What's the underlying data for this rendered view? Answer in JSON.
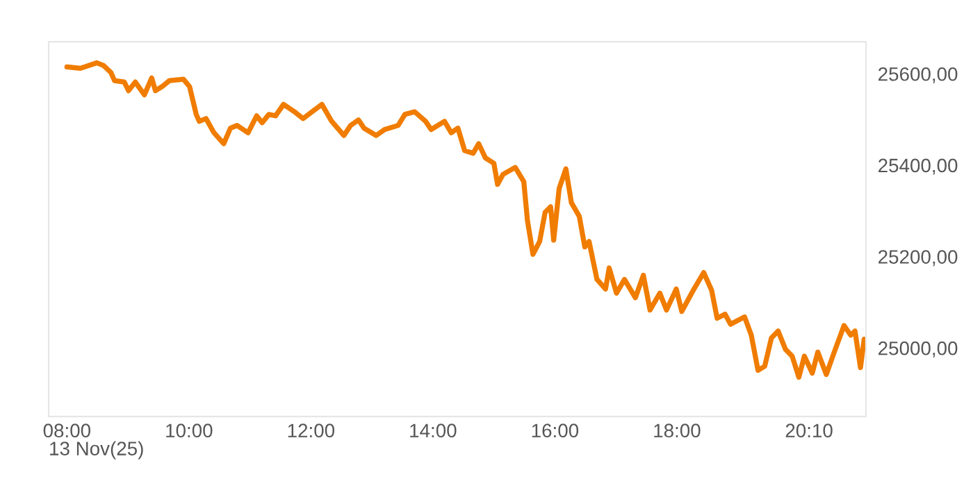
{
  "chart_data": {
    "type": "line",
    "color": "#f07c00",
    "line_style": "solid",
    "marker": "none",
    "grid": false,
    "legend": false,
    "x": [
      8.0,
      8.22,
      8.49,
      8.6,
      8.72,
      8.78,
      8.94,
      9.01,
      9.12,
      9.27,
      9.39,
      9.45,
      9.56,
      9.68,
      9.91,
      10.01,
      10.12,
      10.17,
      10.28,
      10.41,
      10.57,
      10.68,
      10.79,
      10.97,
      11.11,
      11.2,
      11.31,
      11.42,
      11.55,
      11.73,
      11.87,
      12.02,
      12.18,
      12.34,
      12.54,
      12.65,
      12.78,
      12.87,
      13.07,
      13.21,
      13.43,
      13.54,
      13.7,
      13.88,
      13.97,
      14.19,
      14.3,
      14.41,
      14.52,
      14.66,
      14.75,
      14.86,
      15.0,
      15.06,
      15.15,
      15.35,
      15.49,
      15.55,
      15.64,
      15.75,
      15.84,
      15.93,
      15.98,
      16.07,
      16.18,
      16.27,
      16.4,
      16.49,
      16.56,
      16.69,
      16.83,
      16.89,
      17.01,
      17.14,
      17.32,
      17.45,
      17.56,
      17.72,
      17.83,
      17.99,
      18.08,
      18.28,
      18.44,
      18.57,
      18.66,
      18.79,
      18.88,
      19.11,
      19.22,
      19.33,
      19.44,
      19.55,
      19.66,
      19.78,
      19.89,
      20.0,
      20.09,
      20.22,
      20.31,
      20.45,
      20.58,
      20.74,
      20.85,
      20.92,
      21.01,
      21.07
    ],
    "values": [
      25615,
      25612,
      25624,
      25618,
      25603,
      25585,
      25582,
      25563,
      25582,
      25554,
      25591,
      25563,
      25572,
      25585,
      25588,
      25572,
      25511,
      25496,
      25502,
      25471,
      25447,
      25481,
      25487,
      25471,
      25508,
      25493,
      25511,
      25508,
      25533,
      25517,
      25502,
      25517,
      25533,
      25496,
      25465,
      25487,
      25499,
      25481,
      25465,
      25478,
      25487,
      25511,
      25517,
      25496,
      25478,
      25496,
      25471,
      25481,
      25432,
      25426,
      25447,
      25416,
      25404,
      25358,
      25380,
      25395,
      25364,
      25279,
      25205,
      25233,
      25297,
      25309,
      25236,
      25349,
      25392,
      25318,
      25288,
      25221,
      25233,
      25150,
      25129,
      25175,
      25120,
      25150,
      25110,
      25159,
      25083,
      25120,
      25083,
      25129,
      25080,
      25129,
      25165,
      25126,
      25065,
      25074,
      25052,
      25068,
      25028,
      24951,
      24960,
      25022,
      25037,
      24997,
      24982,
      24936,
      24982,
      24945,
      24991,
      24942,
      24991,
      25049,
      25028,
      25037,
      24957,
      25019
    ],
    "xlabel": "13 Nov(25)",
    "xlim": [
      7.7,
      21.1
    ],
    "ylim": [
      24850,
      25670
    ],
    "xticks": [
      {
        "value": 8,
        "label": "08:00"
      },
      {
        "value": 10,
        "label": "10:00"
      },
      {
        "value": 12,
        "label": "12:00"
      },
      {
        "value": 14,
        "label": "14:00"
      },
      {
        "value": 16,
        "label": "16:00"
      },
      {
        "value": 18,
        "label": "18:00"
      },
      {
        "value": 20.1667,
        "label": "20:10"
      }
    ],
    "yticks": [
      {
        "value": 25000,
        "label": "25000,00"
      },
      {
        "value": 25200,
        "label": "25200,00"
      },
      {
        "value": 25400,
        "label": "25400,00"
      },
      {
        "value": 25600,
        "label": "25600,00"
      }
    ]
  }
}
